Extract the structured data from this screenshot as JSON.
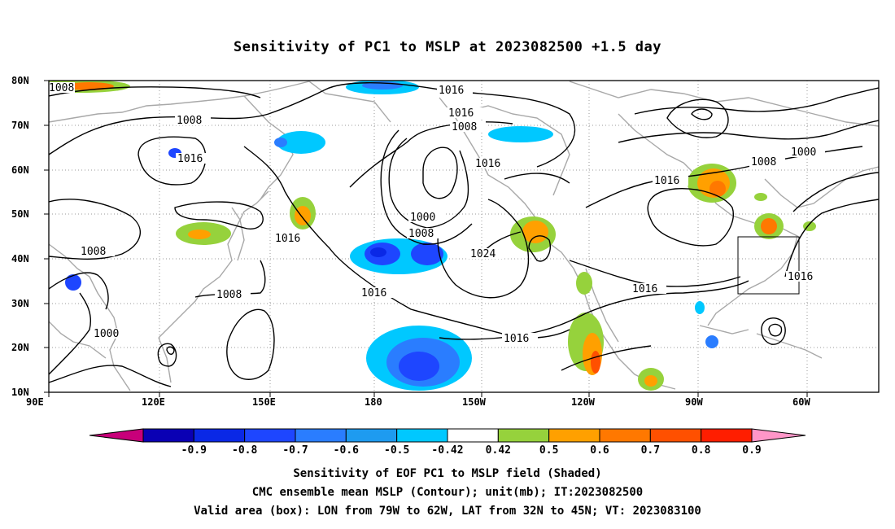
{
  "title": "Sensitivity of PC1 to MSLP at 2023082500 +1.5 day",
  "lat_labels": [
    "80N",
    "70N",
    "60N",
    "50N",
    "40N",
    "30N",
    "20N",
    "10N"
  ],
  "lon_labels": [
    "90E",
    "120E",
    "150E",
    "180",
    "150W",
    "120W",
    "90W",
    "60W"
  ],
  "contour_labels": [
    "1008",
    "1016",
    "1008",
    "1016",
    "1016",
    "1008",
    "1016",
    "1016",
    "1008",
    "1008",
    "1000",
    "1008",
    "1016",
    "1016",
    "1000",
    "1008",
    "1024",
    "1016",
    "1016",
    "1016",
    "1000",
    "1016",
    "1008",
    "1016",
    "1016"
  ],
  "colorbar": {
    "colors": [
      "#c8007a",
      "#0a00b4",
      "#0a28e6",
      "#1e46ff",
      "#2a7dff",
      "#1e9bf0",
      "#00c8ff",
      "#ffffff",
      "#96d23c",
      "#ffa000",
      "#ff7800",
      "#ff5000",
      "#ff1e00",
      "#ff96c8"
    ],
    "labels": [
      "-0.9",
      "-0.8",
      "-0.7",
      "-0.6",
      "-0.5",
      "-0.42",
      "0.42",
      "0.5",
      "0.6",
      "0.7",
      "0.8",
      "0.9"
    ]
  },
  "valid_box": {
    "lon": [
      -79,
      -62
    ],
    "lat": [
      32,
      45
    ]
  },
  "footer": {
    "line1": "Sensitivity of EOF PC1 to MSLP field (Shaded)",
    "line2": "CMC ensemble mean MSLP (Contour); unit(mb); IT:2023082500",
    "line3": "Valid area (box): LON from 79W to 62W, LAT from 32N to 45N; VT: 2023083100"
  }
}
